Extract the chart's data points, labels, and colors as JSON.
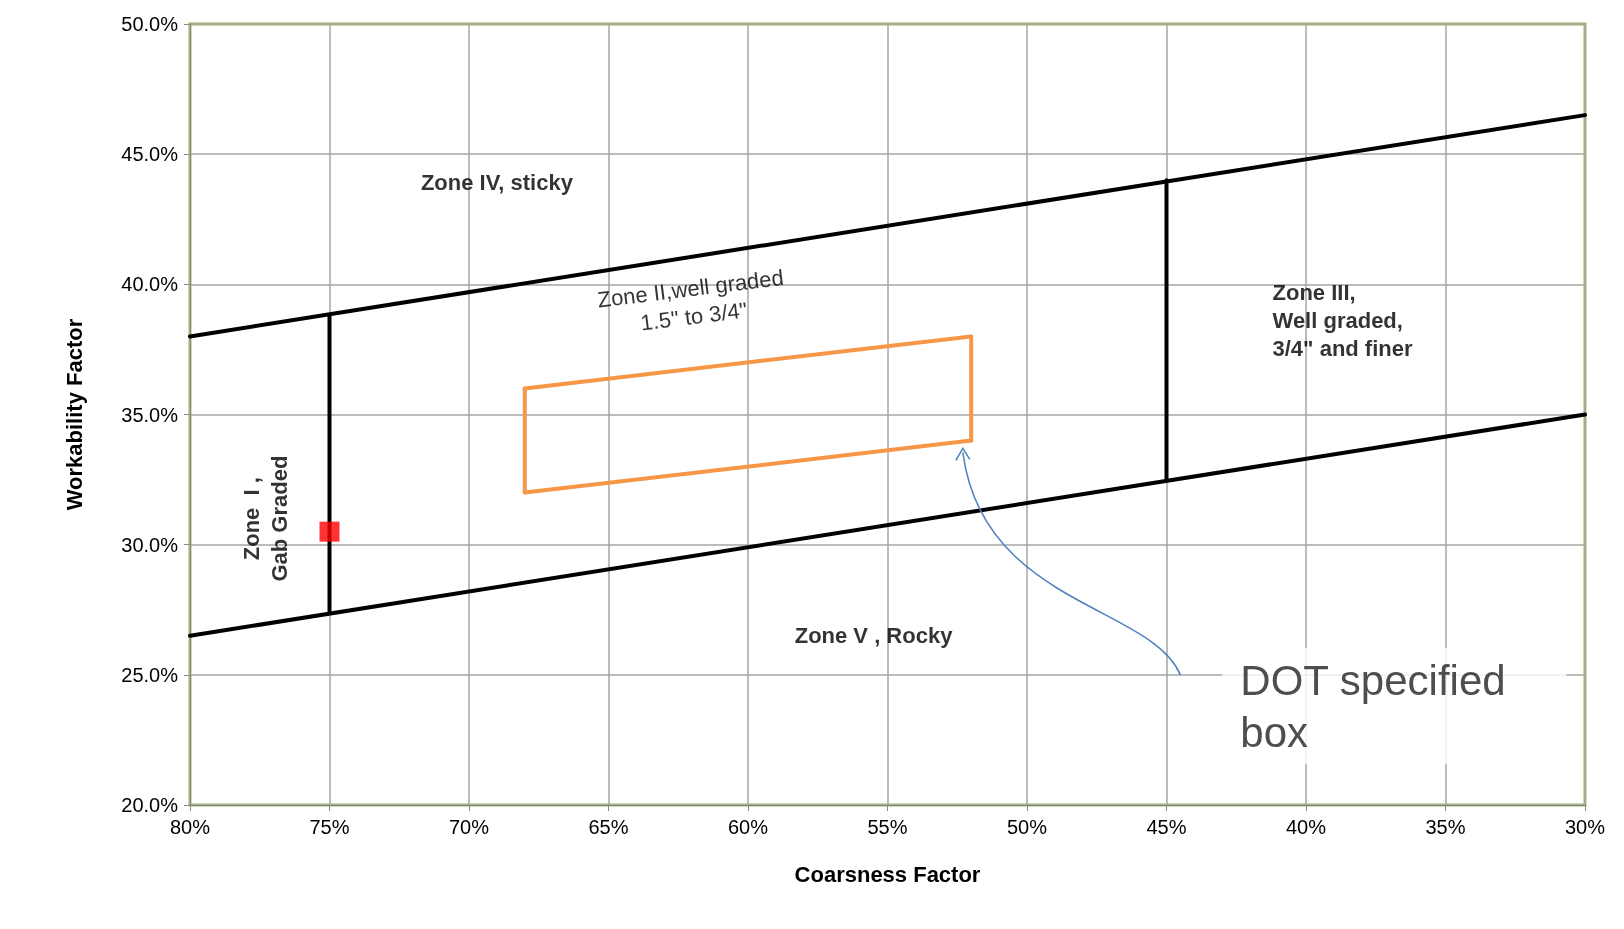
{
  "chart_data": {
    "type": "line",
    "xlabel": "Coarsness Factor",
    "ylabel": "Workability Factor",
    "xlim": [
      80,
      30
    ],
    "xticks": [
      {
        "value": 80,
        "label": "80%"
      },
      {
        "value": 75,
        "label": "75%"
      },
      {
        "value": 70,
        "label": "70%"
      },
      {
        "value": 65,
        "label": "65%"
      },
      {
        "value": 60,
        "label": "60%"
      },
      {
        "value": 55,
        "label": "55%"
      },
      {
        "value": 50,
        "label": "50%"
      },
      {
        "value": 45,
        "label": "45%"
      },
      {
        "value": 40,
        "label": "40%"
      },
      {
        "value": 35,
        "label": "35%"
      },
      {
        "value": 30,
        "label": "30%"
      }
    ],
    "ylim": [
      20,
      50
    ],
    "yticks": [
      {
        "value": 20,
        "label": "20.0%"
      },
      {
        "value": 25,
        "label": "25.0%"
      },
      {
        "value": 30,
        "label": "30.0%"
      },
      {
        "value": 35,
        "label": "35.0%"
      },
      {
        "value": 40,
        "label": "40.0%"
      },
      {
        "value": 45,
        "label": "45.0%"
      },
      {
        "value": 50,
        "label": "50.0%"
      }
    ],
    "grid": true,
    "series": [
      {
        "color": "#000000",
        "x": [
          80,
          30
        ],
        "values": [
          38,
          46.5
        ],
        "marker": "none"
      },
      {
        "color": "#000000",
        "x": [
          80,
          30
        ],
        "values": [
          26.5,
          35
        ],
        "marker": "none"
      },
      {
        "color": "#000000",
        "x": [
          75,
          75
        ],
        "values": [
          27.4,
          38.8
        ],
        "marker": "none"
      },
      {
        "color": "#000000",
        "x": [
          45,
          45
        ],
        "values": [
          32.5,
          44
        ],
        "marker": "none"
      },
      {
        "color": "#f79646",
        "x": [
          68,
          52
        ],
        "values": [
          36,
          38
        ],
        "marker": "none"
      },
      {
        "color": "#f79646",
        "x": [
          52,
          52
        ],
        "values": [
          38,
          34
        ],
        "marker": "none"
      },
      {
        "color": "#f79646",
        "x": [
          68,
          52
        ],
        "values": [
          32,
          34
        ],
        "marker": "none"
      },
      {
        "color": "#f79646",
        "x": [
          68,
          68
        ],
        "values": [
          32,
          36
        ],
        "marker": "none"
      },
      {
        "type": "scatter",
        "color": "#ff0000",
        "x": [
          75
        ],
        "values": [
          30.5
        ],
        "marker": "square"
      }
    ],
    "annotations": [
      "Zone IV, sticky",
      "Zone  I ,\nGab Graded",
      "Zone II,well graded\n1.5\" to 3/4\"",
      "Zone III,\nWell graded,\n3/4\" and finer",
      "Zone V , Rocky",
      "DOT specified\nbox"
    ]
  }
}
